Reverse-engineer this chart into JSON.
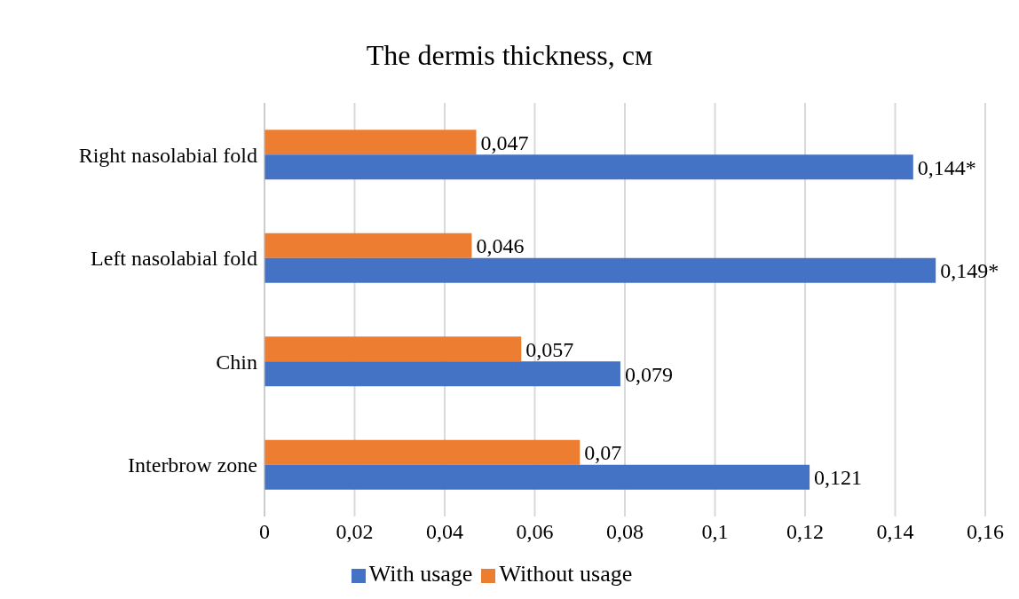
{
  "chart_data": {
    "type": "bar",
    "orientation": "horizontal",
    "title": "The dermis thickness, см",
    "categories": [
      "Right nasolabial fold",
      "Left nasolabial fold",
      "Chin",
      "Interbrow zone"
    ],
    "series": [
      {
        "name": "Without usage",
        "color": "#ed7d31",
        "values": [
          0.047,
          0.046,
          0.057,
          0.07
        ],
        "value_labels": [
          "0,047",
          "0,046",
          "0,057",
          "0,07"
        ]
      },
      {
        "name": "With usage",
        "color": "#4472c4",
        "values": [
          0.144,
          0.149,
          0.079,
          0.121
        ],
        "value_labels": [
          "0,144*",
          "0,149*",
          "0,079",
          "0,121"
        ]
      }
    ],
    "xlim": [
      0,
      0.16
    ],
    "xticks": [
      {
        "value": 0,
        "label": "0"
      },
      {
        "value": 0.02,
        "label": "0,02"
      },
      {
        "value": 0.04,
        "label": "0,04"
      },
      {
        "value": 0.06,
        "label": "0,06"
      },
      {
        "value": 0.08,
        "label": "0,08"
      },
      {
        "value": 0.1,
        "label": "0,1"
      },
      {
        "value": 0.12,
        "label": "0,12"
      },
      {
        "value": 0.14,
        "label": "0,14"
      },
      {
        "value": 0.16,
        "label": "0,16"
      }
    ],
    "grid": "x",
    "legend": "bottom"
  }
}
